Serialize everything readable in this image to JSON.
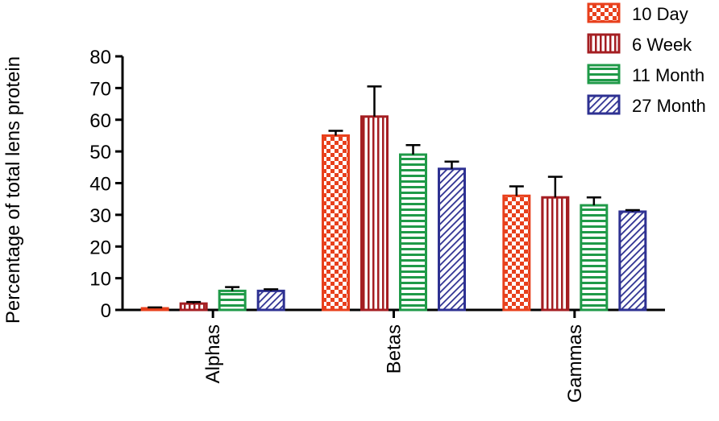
{
  "chart_data": {
    "type": "bar",
    "title": "",
    "xlabel": "",
    "ylabel": "Percentage of total lens protein",
    "ylim": [
      0,
      80
    ],
    "yticks": [
      0,
      10,
      20,
      30,
      40,
      50,
      60,
      70,
      80
    ],
    "categories": [
      "Alphas",
      "Betas",
      "Gammas"
    ],
    "series": [
      {
        "name": "10 Day",
        "color": "#E8401C",
        "pattern": "checker",
        "values": [
          0.5,
          55,
          36
        ],
        "errors": [
          0.3,
          1.5,
          3
        ]
      },
      {
        "name": "6 Week",
        "color": "#A41E22",
        "pattern": "vertical",
        "values": [
          2,
          61,
          35.5
        ],
        "errors": [
          0.5,
          9.5,
          6.5
        ]
      },
      {
        "name": "11 Month",
        "color": "#1F9A48",
        "pattern": "horizontal",
        "values": [
          6,
          49,
          33
        ],
        "errors": [
          1.2,
          3,
          2.5
        ]
      },
      {
        "name": "27 Month",
        "color": "#2E3192",
        "pattern": "diagonal",
        "values": [
          6,
          44.5,
          31
        ],
        "errors": [
          0.5,
          2.3,
          0.5
        ]
      }
    ],
    "grid": false,
    "legend_position": "top-right"
  }
}
